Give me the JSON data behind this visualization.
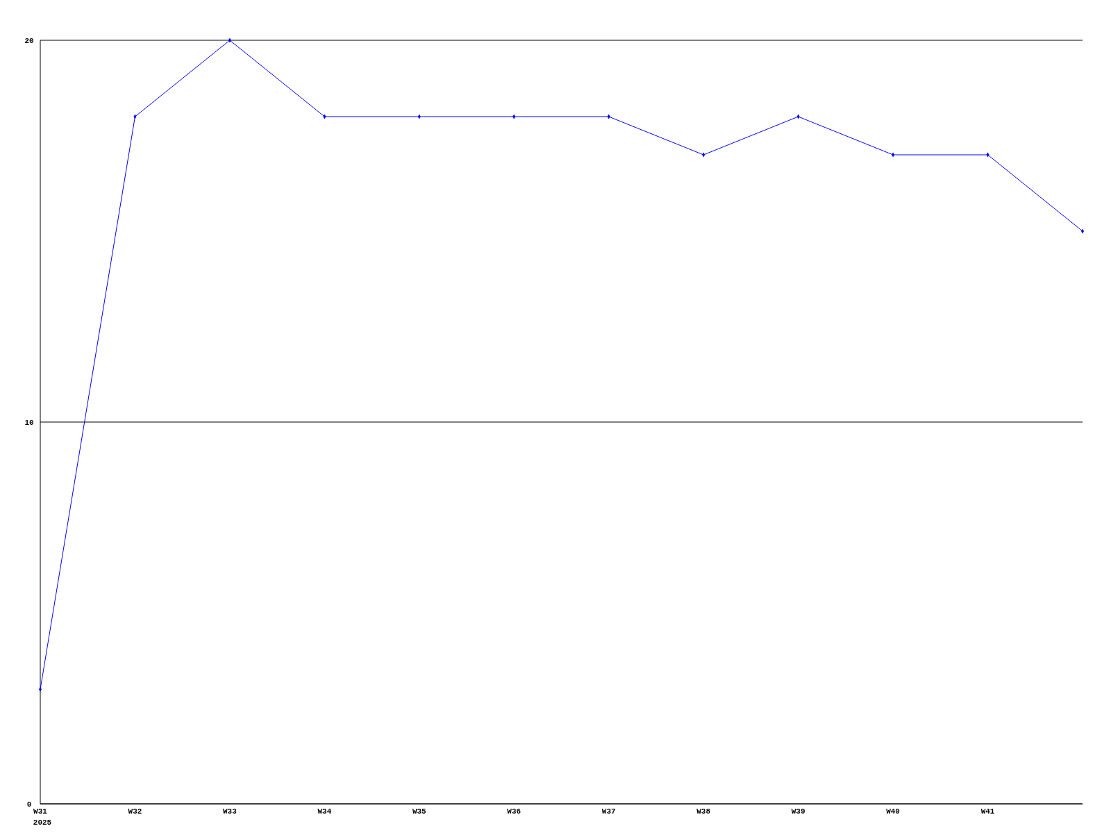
{
  "chart_data": {
    "type": "line",
    "categories": [
      "W31",
      "W32",
      "W33",
      "W34",
      "W35",
      "W36",
      "W37",
      "W38",
      "W39",
      "W40",
      "W41",
      null
    ],
    "series": [
      {
        "color": "#0000ff",
        "values": [
          3,
          18,
          20,
          18,
          18,
          18,
          18,
          17,
          18,
          17,
          17,
          15
        ]
      }
    ],
    "ylim": [
      0,
      20
    ],
    "yticks": [
      0,
      10,
      20
    ],
    "grid": "y",
    "marker": "diamond",
    "line_style": "solid",
    "annotations": [
      "2025"
    ]
  }
}
